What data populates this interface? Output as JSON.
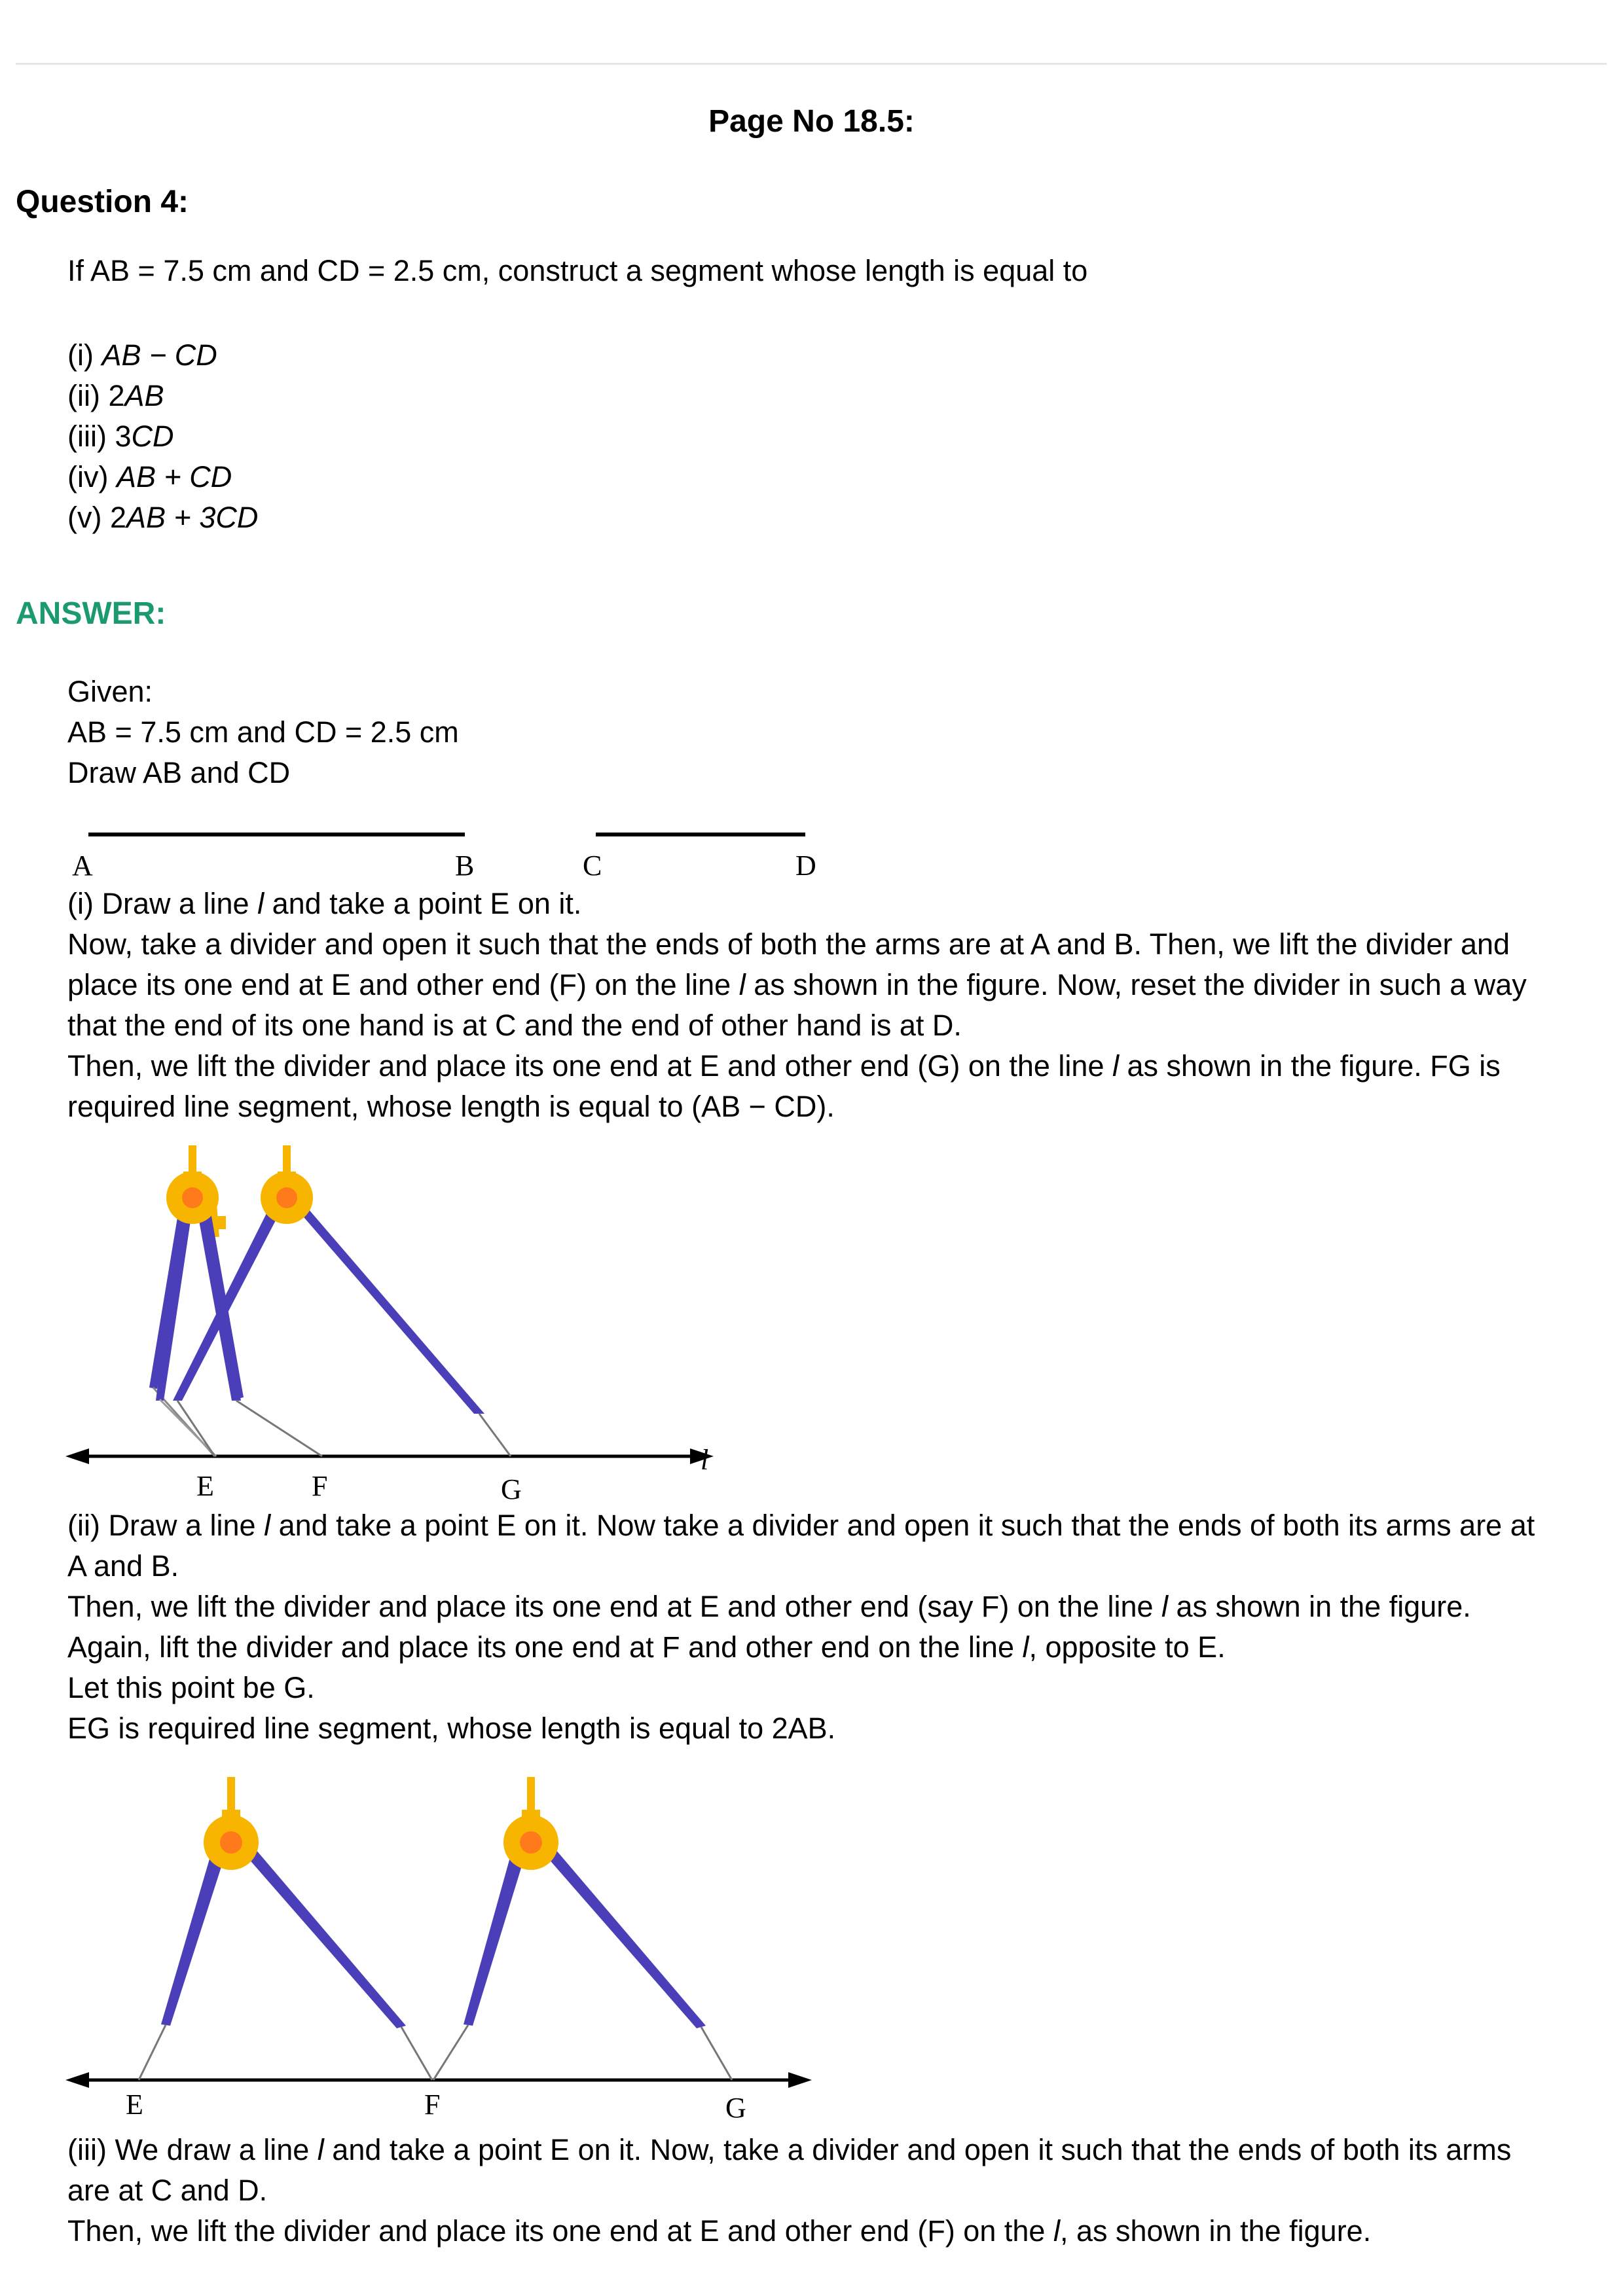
{
  "header": {
    "page_no": "Page No 18.5:"
  },
  "question": {
    "title": "Question 4:",
    "text": "If AB = 7.5 cm and CD = 2.5 cm, construct a segment whose length is equal to",
    "options": [
      {
        "num": "(i) ",
        "expr": "AB − CD"
      },
      {
        "num": "(ii) 2",
        "expr": "AB"
      },
      {
        "num": "(iii) 3",
        "expr": "CD"
      },
      {
        "num": "(iv) ",
        "expr": "AB + CD"
      },
      {
        "num": "(v) 2",
        "expr": "AB + 3CD"
      }
    ]
  },
  "answer": {
    "title": "ANSWER:",
    "given": [
      "Given:",
      "AB = 7.5 cm and CD = 2.5 cm",
      "Draw AB and CD"
    ],
    "fig0_labels": {
      "a": "A",
      "b": "B",
      "c": "C",
      "d": "D"
    },
    "part1": {
      "lines": [
        "(i) Draw a line l and take a point E on it.",
        "Now, take a divider and open it such that the ends of both the arms are at A and B. Then, we lift the divider and",
        "place its one end at E and other end (F) on the line l as shown in the figure. Now, reset the divider in such a way",
        "that the end of its one hand is at C and the end of other hand is at D.",
        "Then, we lift the divider and place its one end at E and other end (G) on the line l as shown in the figure. FG is",
        "required line segment, whose length is equal to (AB − CD)."
      ],
      "labels": {
        "e": "E",
        "f": "F",
        "g": "G",
        "l": "l"
      }
    },
    "part2": {
      "lines": [
        "(ii) Draw a line l and take a point E on it. Now take a divider and open it such that the ends of both its arms are at",
        "A and B.",
        "Then, we lift the divider and place its one end at E and other end (say F) on the line l as shown in the figure.",
        "Again, lift the divider and place its one end at F and other end on the line l, opposite to E.",
        "Let this point be G.",
        "EG is required line segment, whose length is equal to 2AB."
      ],
      "labels": {
        "e": "E",
        "f": "F",
        "g": "G"
      }
    },
    "part3": {
      "lines": [
        "(iii) We draw a line l and take a point E on it. Now, take a divider and open it such that the ends of both its arms",
        "are at C and D.",
        "Then, we lift the divider and place its one end at E and other end (F) on the l, as shown in the figure."
      ]
    }
  },
  "colors": {
    "answer_heading": "#1a9a6e",
    "divider_arm": "#4a3fb8",
    "divider_hinge": "#f7b500",
    "divider_pin": "#ff7a1a"
  }
}
